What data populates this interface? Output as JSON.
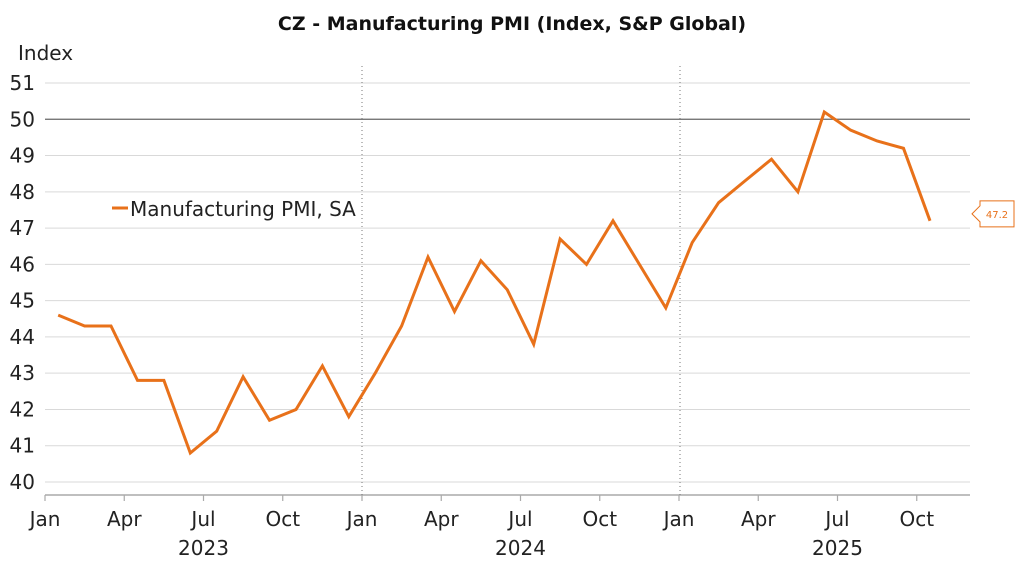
{
  "chart_data": {
    "type": "line",
    "title": "CZ - Manufacturing PMI (Index, S&P Global)",
    "ylabel": "Index",
    "xlabel": "",
    "ylim": [
      40,
      51
    ],
    "yticks": [
      "40",
      "41",
      "42",
      "43",
      "44",
      "45",
      "46",
      "47",
      "48",
      "49",
      "50",
      "51"
    ],
    "reference_line": 50,
    "month_ticks": [
      "Jan",
      "Apr",
      "Jul",
      "Oct",
      "Jan",
      "Apr",
      "Jul",
      "Oct",
      "Jan",
      "Apr",
      "Jul",
      "Oct"
    ],
    "years": [
      "2023",
      "2024",
      "2025"
    ],
    "legend": "Manufacturing PMI, SA",
    "end_label": "47.2",
    "line_color": "#e8711a",
    "series": [
      {
        "name": "Manufacturing PMI, SA",
        "x": [
          "Jan 2023",
          "Feb 2023",
          "Mar 2023",
          "Apr 2023",
          "May 2023",
          "Jun 2023",
          "Jul 2023",
          "Aug 2023",
          "Sep 2023",
          "Oct 2023",
          "Nov 2023",
          "Dec 2023",
          "Jan 2024",
          "Feb 2024",
          "Mar 2024",
          "Apr 2024",
          "May 2024",
          "Jun 2024",
          "Jul 2024",
          "Aug 2024",
          "Sep 2024",
          "Oct 2024",
          "Nov 2024",
          "Dec 2024",
          "Jan 2025",
          "Feb 2025",
          "Mar 2025",
          "Apr 2025",
          "May 2025",
          "Jun 2025",
          "Jul 2025",
          "Aug 2025",
          "Sep 2025",
          "Oct 2025"
        ],
        "values": [
          44.6,
          44.3,
          44.3,
          42.8,
          42.8,
          40.8,
          41.4,
          42.9,
          41.7,
          42.0,
          43.2,
          41.8,
          43.0,
          44.3,
          46.2,
          44.7,
          46.1,
          45.3,
          43.8,
          46.7,
          46.0,
          47.2,
          46.0,
          44.8,
          46.6,
          47.7,
          48.3,
          48.9,
          48.0,
          50.2,
          49.7,
          49.4,
          49.2,
          47.2
        ]
      }
    ]
  }
}
